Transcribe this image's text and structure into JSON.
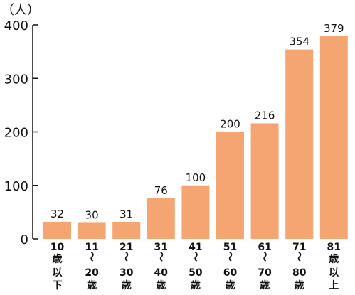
{
  "chart_data": {
    "type": "bar",
    "unit_label": "（人）",
    "categories": [
      [
        "10",
        "歳",
        "以",
        "下"
      ],
      [
        "11",
        "～",
        "20",
        "歳"
      ],
      [
        "21",
        "～",
        "30",
        "歳"
      ],
      [
        "31",
        "～",
        "40",
        "歳"
      ],
      [
        "41",
        "～",
        "50",
        "歳"
      ],
      [
        "51",
        "～",
        "60",
        "歳"
      ],
      [
        "61",
        "～",
        "70",
        "歳"
      ],
      [
        "71",
        "～",
        "80",
        "歳"
      ],
      [
        "81",
        "歳",
        "以",
        "上"
      ]
    ],
    "values": [
      32,
      30,
      31,
      76,
      100,
      200,
      216,
      354,
      379
    ],
    "ylim": [
      0,
      400
    ],
    "yticks": [
      0,
      100,
      200,
      300,
      400
    ],
    "grid": false,
    "bar_color": "#f5a572"
  }
}
